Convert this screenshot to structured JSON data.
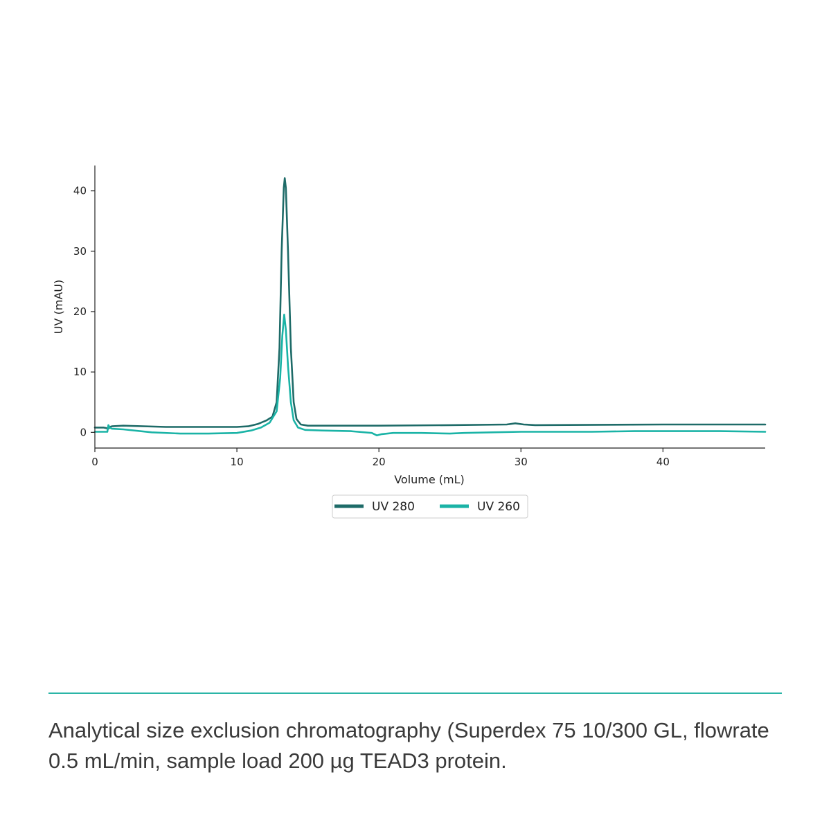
{
  "chart_data": {
    "type": "line",
    "xlabel": "Volume (mL)",
    "ylabel": "UV (mAU)",
    "xlim": [
      0,
      47.2
    ],
    "ylim": [
      -2.6,
      44.2
    ],
    "xticks": [
      0,
      10,
      20,
      30,
      40
    ],
    "yticks": [
      0,
      10,
      20,
      30,
      40
    ],
    "grid": false,
    "legend_position": "bottom-center",
    "series": [
      {
        "name": "UV 280",
        "color": "#1e6b68",
        "points": [
          [
            0,
            0.8
          ],
          [
            0.6,
            0.8
          ],
          [
            0.8,
            0.7
          ],
          [
            0.95,
            0.6
          ],
          [
            1.05,
            0.9
          ],
          [
            1.2,
            1.0
          ],
          [
            2,
            1.1
          ],
          [
            5,
            0.9
          ],
          [
            8,
            0.9
          ],
          [
            10,
            0.9
          ],
          [
            10.8,
            1.0
          ],
          [
            11.5,
            1.4
          ],
          [
            12.1,
            2.0
          ],
          [
            12.5,
            2.6
          ],
          [
            12.8,
            5.0
          ],
          [
            13.0,
            14.0
          ],
          [
            13.15,
            30.0
          ],
          [
            13.3,
            40.5
          ],
          [
            13.37,
            42.1
          ],
          [
            13.45,
            40.5
          ],
          [
            13.6,
            30.0
          ],
          [
            13.8,
            14.0
          ],
          [
            14.0,
            5.0
          ],
          [
            14.2,
            2.2
          ],
          [
            14.5,
            1.3
          ],
          [
            15,
            1.1
          ],
          [
            17,
            1.1
          ],
          [
            20,
            1.1
          ],
          [
            25,
            1.2
          ],
          [
            29,
            1.3
          ],
          [
            29.6,
            1.5
          ],
          [
            30.2,
            1.3
          ],
          [
            31,
            1.2
          ],
          [
            40,
            1.3
          ],
          [
            47.2,
            1.3
          ]
        ]
      },
      {
        "name": "UV 260",
        "color": "#1ab3a6",
        "points": [
          [
            0,
            0.1
          ],
          [
            0.7,
            0.1
          ],
          [
            0.88,
            0.1
          ],
          [
            0.95,
            1.2
          ],
          [
            1.05,
            0.8
          ],
          [
            1.2,
            0.6
          ],
          [
            2,
            0.5
          ],
          [
            4,
            0.0
          ],
          [
            6,
            -0.2
          ],
          [
            8,
            -0.2
          ],
          [
            10,
            -0.1
          ],
          [
            11,
            0.3
          ],
          [
            11.7,
            0.8
          ],
          [
            12.3,
            1.6
          ],
          [
            12.8,
            3.5
          ],
          [
            13.05,
            9.0
          ],
          [
            13.2,
            16.0
          ],
          [
            13.33,
            19.5
          ],
          [
            13.45,
            17.0
          ],
          [
            13.6,
            11.0
          ],
          [
            13.8,
            5.0
          ],
          [
            14.0,
            2.0
          ],
          [
            14.3,
            0.8
          ],
          [
            14.8,
            0.4
          ],
          [
            16,
            0.3
          ],
          [
            18,
            0.2
          ],
          [
            19.5,
            -0.1
          ],
          [
            19.85,
            -0.5
          ],
          [
            20.2,
            -0.3
          ],
          [
            21,
            -0.1
          ],
          [
            23,
            -0.1
          ],
          [
            25,
            -0.2
          ],
          [
            26,
            -0.1
          ],
          [
            28,
            0.0
          ],
          [
            30,
            0.1
          ],
          [
            35,
            0.1
          ],
          [
            38,
            0.2
          ],
          [
            40,
            0.2
          ],
          [
            44,
            0.2
          ],
          [
            47.2,
            0.1
          ]
        ]
      }
    ]
  },
  "caption": "Analytical size exclusion chromatography (Superdex 75 10/300 GL, flowrate 0.5 mL/min, sample load 200 µg TEAD3 protein.",
  "divider_color": "#2bb5a7"
}
